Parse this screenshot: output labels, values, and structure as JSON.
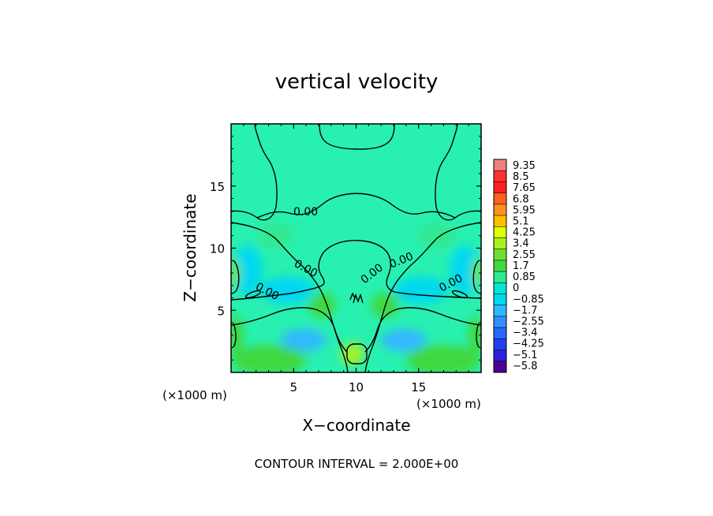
{
  "chart_data": {
    "type": "heatmap",
    "title": "vertical velocity",
    "xlabel": "X−coordinate",
    "ylabel": "Z−coordinate",
    "x_unit": "(×1000 m)",
    "y_unit": "(×1000 m)",
    "xlim": [
      0,
      20
    ],
    "ylim": [
      0,
      20
    ],
    "x_ticks": [
      "5",
      "10",
      "15"
    ],
    "y_ticks": [
      "5",
      "10",
      "15"
    ],
    "x_tick_values": [
      5,
      10,
      15
    ],
    "y_tick_values": [
      5,
      10,
      15
    ],
    "contour_labels": [
      "0.00",
      "0.00",
      "0.00",
      "0.00",
      "0.00",
      "0.00",
      "0.00"
    ],
    "colorbar": {
      "labels": [
        "9.35",
        "8.5",
        "7.65",
        "6.8",
        "5.95",
        "5.1",
        "4.25",
        "3.4",
        "2.55",
        "1.7",
        "0.85",
        "0",
        "−0.85",
        "−1.7",
        "−2.55",
        "−3.4",
        "−4.25",
        "−5.1",
        "−5.8"
      ],
      "colors": [
        "#f08080",
        "#ff3030",
        "#ff2020",
        "#ff6020",
        "#ff9020",
        "#ffc000",
        "#e0ff00",
        "#a8f020",
        "#70e030",
        "#40d840",
        "#30e890",
        "#00e8d0",
        "#00d8f0",
        "#30b8ff",
        "#3090ff",
        "#2868ff",
        "#2040f0",
        "#3020d8",
        "#500090"
      ]
    },
    "contour_interval_text": "CONTOUR INTERVAL = 2.000E+00",
    "field": {
      "background": "#28f0b0",
      "features": [
        {
          "kind": "blob",
          "x": 9.7,
          "z": 1.5,
          "sx": 0.9,
          "sz": 0.9,
          "color": "#a8f020"
        },
        {
          "kind": "blob",
          "x": 5.8,
          "z": 2.6,
          "sx": 1.8,
          "sz": 0.9,
          "color": "#30b8ff"
        },
        {
          "kind": "blob",
          "x": 13.8,
          "z": 2.6,
          "sx": 1.8,
          "sz": 0.9,
          "color": "#30b8ff"
        },
        {
          "kind": "blob",
          "x": 4.5,
          "z": 6.6,
          "sx": 2.2,
          "sz": 1.1,
          "color": "#00d8f0"
        },
        {
          "kind": "blob",
          "x": 15.2,
          "z": 6.6,
          "sx": 2.2,
          "sz": 1.1,
          "color": "#00d8f0"
        },
        {
          "kind": "blob",
          "x": 1.3,
          "z": 8.2,
          "sx": 1.2,
          "sz": 2.0,
          "color": "#00d8f0"
        },
        {
          "kind": "blob",
          "x": 18.7,
          "z": 8.2,
          "sx": 1.2,
          "sz": 2.0,
          "color": "#00d8f0"
        },
        {
          "kind": "blob",
          "x": 0.3,
          "z": 8.0,
          "sx": 0.4,
          "sz": 1.2,
          "color": "#70e030"
        },
        {
          "kind": "blob",
          "x": 19.7,
          "z": 8.0,
          "sx": 0.4,
          "sz": 1.2,
          "color": "#70e030"
        },
        {
          "kind": "blob",
          "x": 0.4,
          "z": 3.0,
          "sx": 0.6,
          "sz": 1.6,
          "color": "#40d840"
        },
        {
          "kind": "blob",
          "x": 19.6,
          "z": 3.0,
          "sx": 0.6,
          "sz": 1.6,
          "color": "#40d840"
        },
        {
          "kind": "blob",
          "x": 3.0,
          "z": 1.0,
          "sx": 3.0,
          "sz": 1.2,
          "color": "#40d840"
        },
        {
          "kind": "blob",
          "x": 17.0,
          "z": 1.0,
          "sx": 3.0,
          "sz": 1.2,
          "color": "#40d840"
        },
        {
          "kind": "blob",
          "x": 7.3,
          "z": 5.4,
          "sx": 1.1,
          "sz": 1.0,
          "color": "#40d840"
        },
        {
          "kind": "blob",
          "x": 12.3,
          "z": 5.4,
          "sx": 1.1,
          "sz": 1.0,
          "color": "#40d840"
        },
        {
          "kind": "blob",
          "x": 3.5,
          "z": 11.0,
          "sx": 1.5,
          "sz": 1.0,
          "color": "#30e890"
        },
        {
          "kind": "blob",
          "x": 16.5,
          "z": 11.0,
          "sx": 1.5,
          "sz": 1.0,
          "color": "#30e890"
        }
      ]
    }
  }
}
